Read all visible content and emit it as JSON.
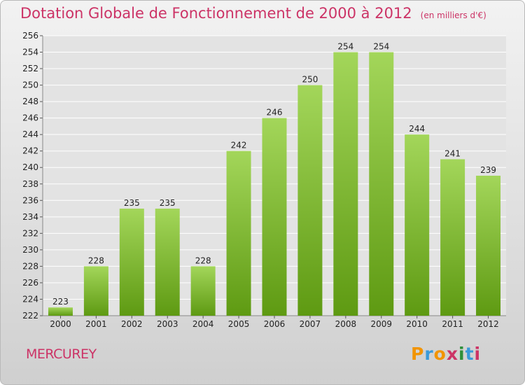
{
  "header": {
    "title": "Dotation Globale de Fonctionnement de 2000 à 2012",
    "subtitle": "(en milliers d'€)"
  },
  "footer": {
    "commune": "MERCUREY",
    "logo_text": "Proxiti"
  },
  "colors": {
    "title": "#cc3366",
    "bar_light": "#a3d65a",
    "bar_dark": "#5e9a12",
    "grid": "#ffffff"
  },
  "chart_data": {
    "type": "bar",
    "title": "Dotation Globale de Fonctionnement de 2000 à 2012",
    "subtitle": "(en milliers d'€)",
    "categories": [
      "2000",
      "2001",
      "2002",
      "2003",
      "2004",
      "2005",
      "2006",
      "2007",
      "2008",
      "2009",
      "2010",
      "2011",
      "2012"
    ],
    "values": [
      223,
      228,
      235,
      235,
      228,
      242,
      246,
      250,
      254,
      254,
      244,
      241,
      239
    ],
    "ylim": [
      222,
      256
    ],
    "yticks": [
      222,
      224,
      226,
      228,
      230,
      232,
      234,
      236,
      238,
      240,
      242,
      244,
      246,
      248,
      250,
      252,
      254,
      256
    ],
    "grid": true,
    "legend": "none"
  }
}
